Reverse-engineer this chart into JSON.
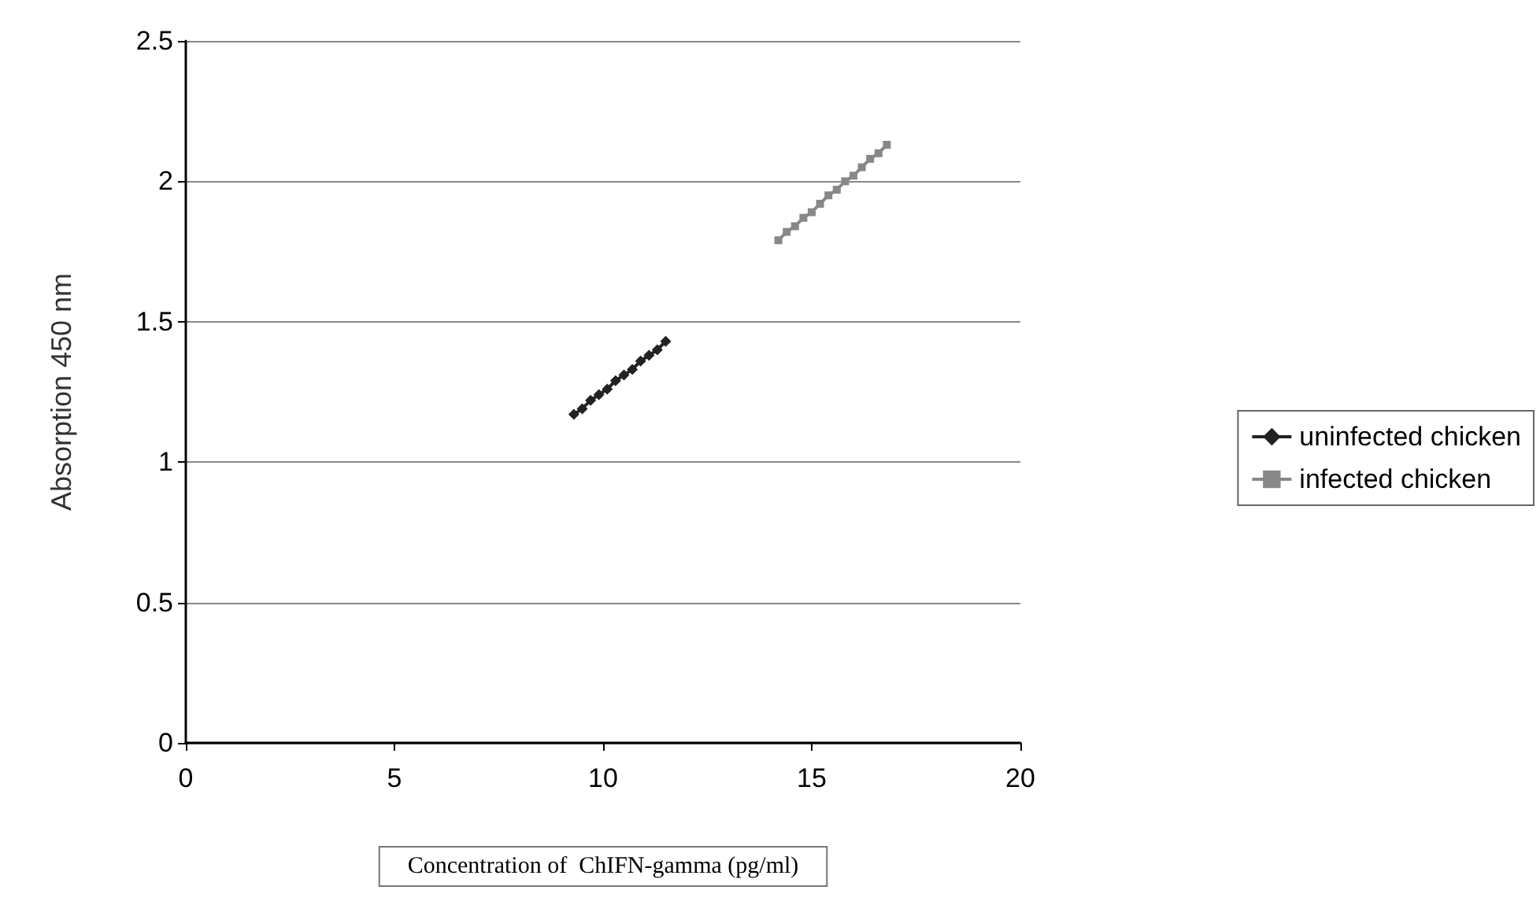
{
  "chart_data": {
    "type": "line",
    "xlabel": "Concentration of  ChIFN-gamma (pg/ml)",
    "ylabel": "Absorption 450 nm",
    "xlim": [
      0,
      20
    ],
    "xticks": [
      0,
      5,
      10,
      15,
      20
    ],
    "ylim": [
      0,
      2.5
    ],
    "yticks": [
      0,
      0.5,
      1,
      1.5,
      2,
      2.5
    ],
    "grid": "y",
    "legend": "right",
    "series": [
      {
        "name": "uninfected chicken",
        "color": "#222222",
        "marker": "diamond",
        "x": [
          9.3,
          9.5,
          9.7,
          9.9,
          10.1,
          10.3,
          10.5,
          10.7,
          10.9,
          11.1,
          11.3,
          11.5
        ],
        "values": [
          1.17,
          1.19,
          1.22,
          1.24,
          1.26,
          1.29,
          1.31,
          1.33,
          1.36,
          1.38,
          1.4,
          1.43
        ]
      },
      {
        "name": "infected chicken",
        "color": "#888888",
        "marker": "square",
        "x": [
          14.2,
          14.4,
          14.6,
          14.8,
          15.0,
          15.2,
          15.4,
          15.6,
          15.8,
          16.0,
          16.2,
          16.4,
          16.6,
          16.8
        ],
        "values": [
          1.79,
          1.82,
          1.84,
          1.87,
          1.89,
          1.92,
          1.95,
          1.97,
          2.0,
          2.02,
          2.05,
          2.08,
          2.1,
          2.13
        ]
      }
    ]
  }
}
